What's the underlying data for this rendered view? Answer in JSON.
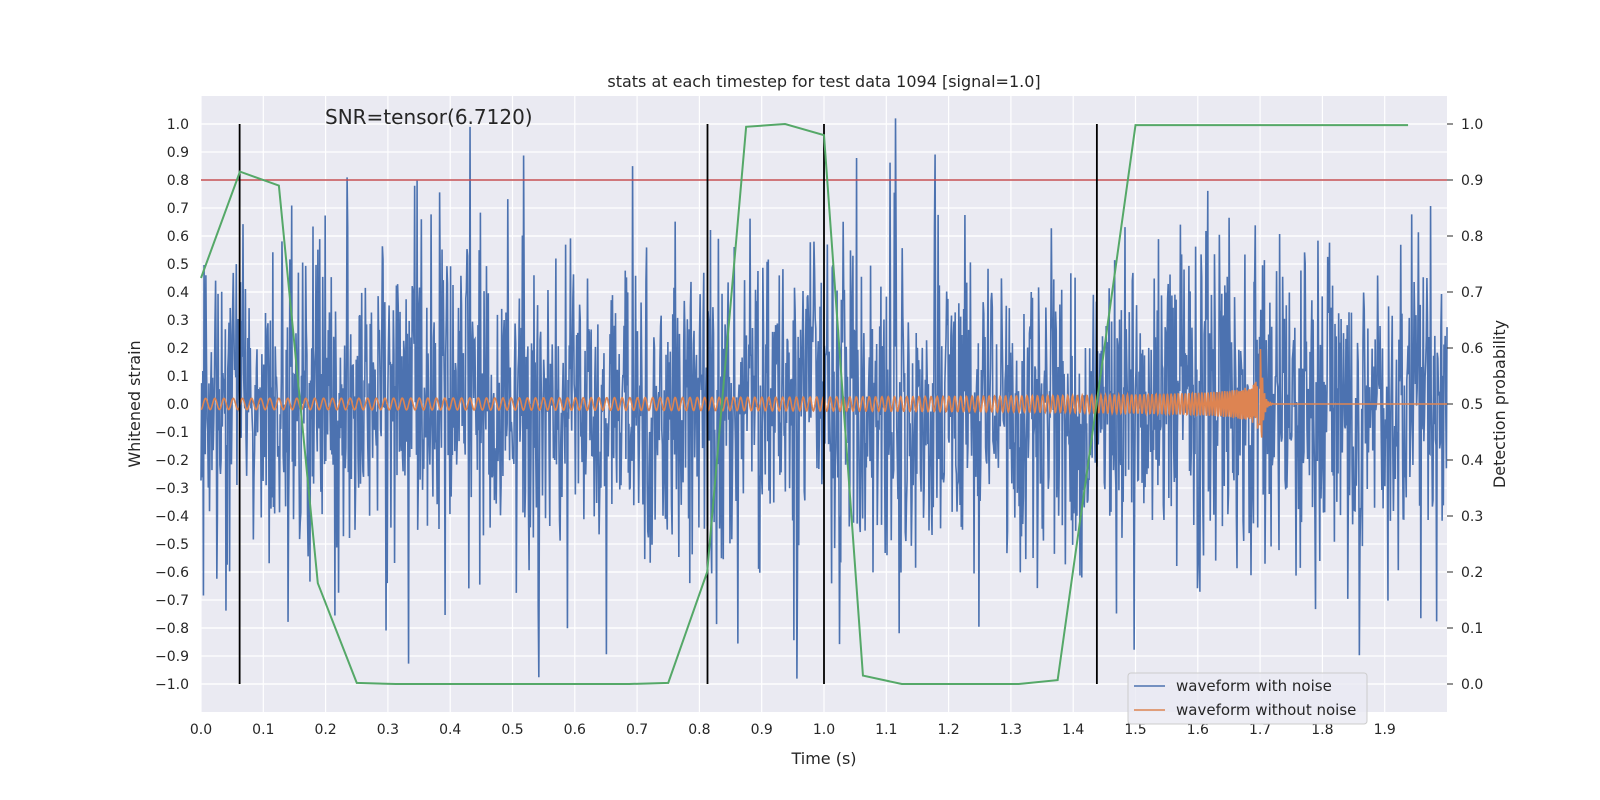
{
  "chart_data": {
    "type": "line",
    "title": "stats at each timestep for test data 1094 [signal=1.0]",
    "xlabel": "Time (s)",
    "ylabel_left": "Whitened strain",
    "ylabel_right": "Detection probability",
    "annotation": "SNR=tensor(6.7120)",
    "xlim": [
      0.0,
      2.0
    ],
    "ylim_left": [
      -1.1,
      1.1
    ],
    "ylim_right": [
      -0.05,
      1.05
    ],
    "xticks": [
      "0.0",
      "0.1",
      "0.2",
      "0.3",
      "0.4",
      "0.5",
      "0.6",
      "0.7",
      "0.8",
      "0.9",
      "1.0",
      "1.1",
      "1.2",
      "1.3",
      "1.4",
      "1.5",
      "1.6",
      "1.7",
      "1.8",
      "1.9"
    ],
    "yticks_left": [
      "1.0",
      "0.9",
      "0.8",
      "0.7",
      "0.6",
      "0.5",
      "0.4",
      "0.3",
      "0.2",
      "0.1",
      "0.0",
      "−0.1",
      "−0.2",
      "−0.3",
      "−0.4",
      "−0.5",
      "−0.6",
      "−0.7",
      "−0.8",
      "−0.9",
      "−1.0"
    ],
    "yticks_right": [
      "1.0",
      "0.9",
      "0.8",
      "0.7",
      "0.6",
      "0.5",
      "0.4",
      "0.3",
      "0.2",
      "0.1",
      "0.0"
    ],
    "threshold": {
      "axis": "right",
      "value": 0.9,
      "color": "#c44e52"
    },
    "vertical_markers": [
      0.062,
      0.813,
      1.0,
      1.438
    ],
    "series": [
      {
        "name": "waveform with noise",
        "axis": "left",
        "color": "#4c72b0",
        "description": "dense noisy strain, amplitude ~0.3 std",
        "x": [
          0.0,
          2.0
        ],
        "std": 0.3
      },
      {
        "name": "waveform without noise",
        "axis": "left",
        "color": "#dd8452",
        "description": "chirp signal ending near t=1.7",
        "x": [
          0.0,
          1.7
        ]
      },
      {
        "name": "detection probability",
        "axis": "right",
        "color": "#55a868",
        "x": [
          0.0,
          0.0625,
          0.125,
          0.1875,
          0.25,
          0.3125,
          0.375,
          0.4375,
          0.5,
          0.5625,
          0.625,
          0.6875,
          0.75,
          0.8125,
          0.875,
          0.9375,
          1.0,
          1.0625,
          1.125,
          1.1875,
          1.25,
          1.3125,
          1.375,
          1.4375,
          1.5,
          1.5625,
          1.625,
          1.6875,
          1.75,
          1.8125,
          1.875,
          1.9375
        ],
        "y": [
          0.725,
          0.915,
          0.89,
          0.18,
          0.002,
          0.0,
          0.0,
          0.0,
          0.0,
          0.0,
          0.0,
          0.0,
          0.002,
          0.2,
          0.995,
          1.0,
          0.98,
          0.015,
          0.0,
          0.0,
          0.0,
          0.0,
          0.007,
          0.5,
          0.998,
          0.998,
          0.998,
          0.998,
          0.998,
          0.998,
          0.998,
          0.998
        ]
      }
    ],
    "legend": {
      "position": "lower-right",
      "entries": [
        "waveform with noise",
        "waveform without noise"
      ]
    }
  }
}
